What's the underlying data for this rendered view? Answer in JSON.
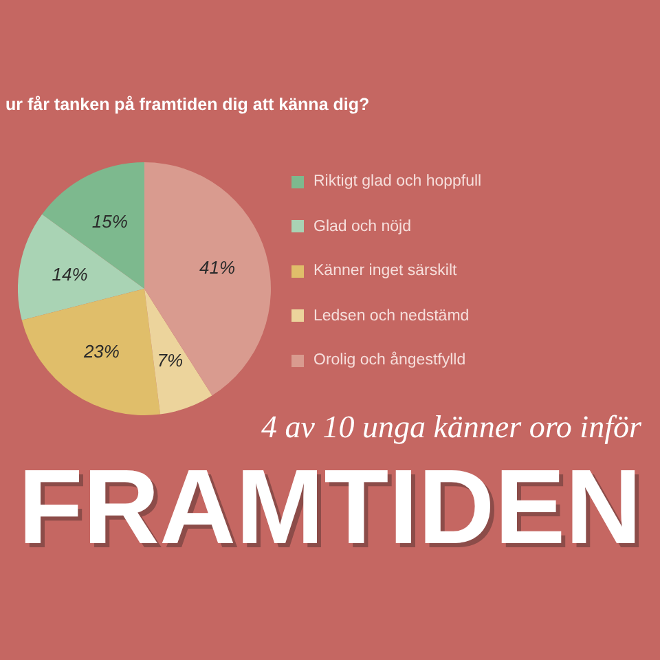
{
  "chart_data": {
    "type": "pie",
    "title": "ur får tanken på framtiden dig att känna dig?",
    "categories": [
      "Riktigt glad och hoppfull",
      "Glad och nöjd",
      "Känner inget särskilt",
      "Ledsen och nedstämd",
      "Orolig och ångestfylld"
    ],
    "values": [
      15,
      14,
      23,
      7,
      41
    ],
    "colors": [
      "#7db98e",
      "#a9d3b4",
      "#e0be6a",
      "#ecd49c",
      "#d99b8f"
    ],
    "value_labels": [
      "15%",
      "14%",
      "23%",
      "7%",
      "41%"
    ],
    "legend": "right",
    "annotations": [
      "4 av 10 unga känner oro inför",
      "FRAMTIDEN"
    ]
  }
}
